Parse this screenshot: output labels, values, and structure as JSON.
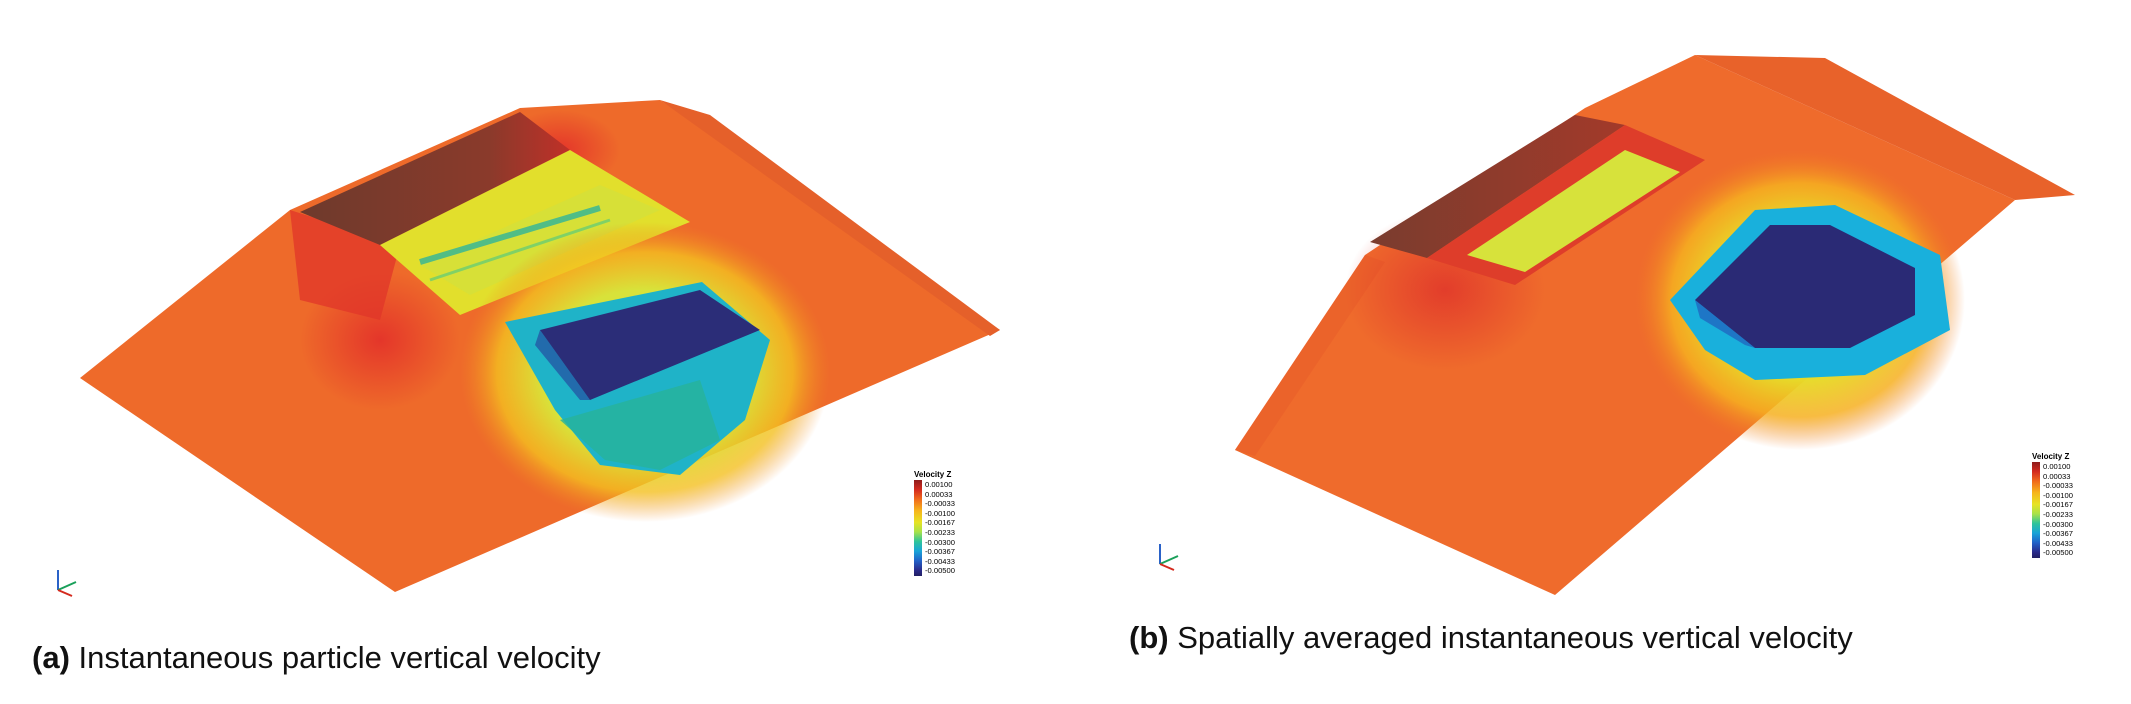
{
  "panels": [
    {
      "label": "(a)",
      "caption": "Instantaneous particle vertical velocity",
      "legend": {
        "title": "Velocity Z",
        "ticks": [
          "0.00100",
          "0.00033",
          "-0.00033",
          "-0.00100",
          "-0.00167",
          "-0.00233",
          "-0.00300",
          "-0.00367",
          "-0.00433",
          "-0.00500"
        ]
      },
      "axes_icon": "xyz-triad-icon"
    },
    {
      "label": "(b)",
      "caption": "Spatially averaged instantaneous vertical velocity",
      "legend": {
        "title": "Velocity Z",
        "ticks": [
          "0.00100",
          "0.00033",
          "-0.00033",
          "-0.00100",
          "-0.00167",
          "-0.00233",
          "-0.00300",
          "-0.00367",
          "-0.00433",
          "-0.00500"
        ]
      },
      "axes_icon": "xyz-triad-icon"
    }
  ],
  "colors": {
    "background_orange": "#ee6a2a",
    "high_dark_red": "#7a3428",
    "red": "#d9342a",
    "yellow": "#e7e324",
    "cyan": "#1fb3d8",
    "low_navy": "#2a2a72"
  }
}
